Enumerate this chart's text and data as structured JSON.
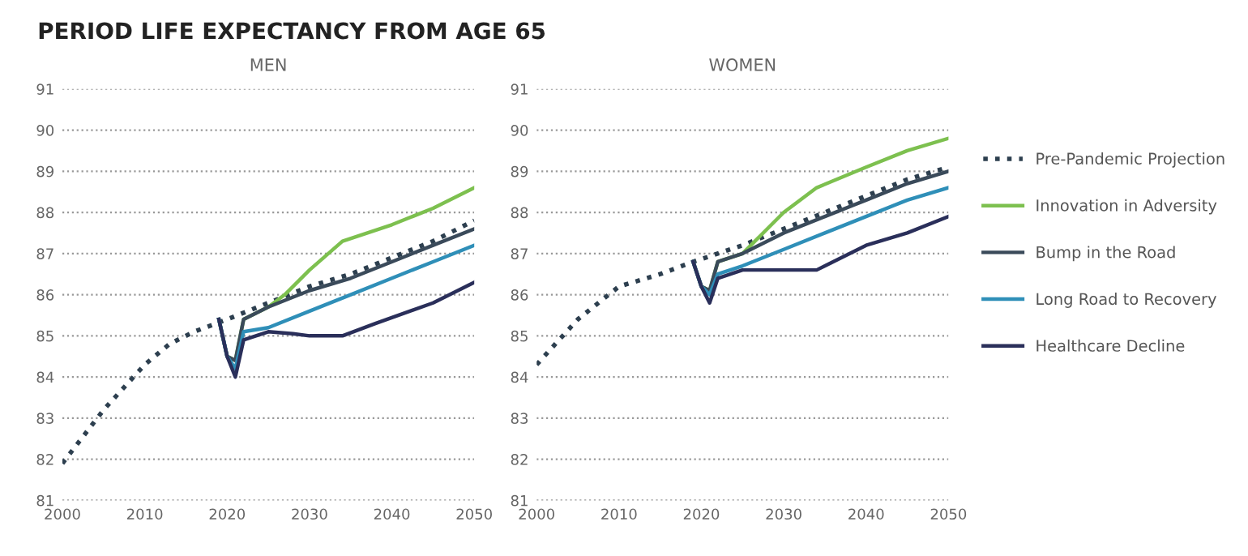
{
  "chart_data": [
    {
      "type": "line",
      "title": "MEN",
      "annotations": [
        "PERIOD LIFE EXPECTANCY FROM AGE 65"
      ],
      "xlim": [
        2000,
        2050
      ],
      "xticks": [
        2000,
        2010,
        2020,
        2030,
        2040,
        2050
      ],
      "ylim": [
        81,
        91
      ],
      "yticks": [
        81,
        82,
        83,
        84,
        85,
        86,
        87,
        88,
        89,
        90,
        91
      ],
      "grid": "y",
      "legend": false,
      "series": [
        {
          "color": "#2d3f4f",
          "line_style": "dotted",
          "x": [
            2000,
            2005,
            2010,
            2013,
            2016,
            2020,
            2025,
            2030,
            2035,
            2040,
            2045,
            2050
          ],
          "values": [
            81.9,
            83.2,
            84.3,
            84.8,
            85.1,
            85.4,
            85.8,
            86.2,
            86.5,
            86.9,
            87.3,
            87.8
          ]
        },
        {
          "color": "#7dc04f",
          "line_style": "solid",
          "x": [
            2019,
            2020,
            2021,
            2022,
            2025,
            2027,
            2030,
            2034,
            2040,
            2045,
            2050
          ],
          "values": [
            85.4,
            84.5,
            84.4,
            85.4,
            85.7,
            86.0,
            86.6,
            87.3,
            87.7,
            88.1,
            88.6
          ]
        },
        {
          "color": "#3a4a5a",
          "line_style": "solid",
          "x": [
            2019,
            2020,
            2021,
            2022,
            2025,
            2030,
            2035,
            2040,
            2045,
            2050
          ],
          "values": [
            85.4,
            84.5,
            84.4,
            85.4,
            85.7,
            86.1,
            86.4,
            86.8,
            87.2,
            87.6
          ]
        },
        {
          "color": "#2f8fb8",
          "line_style": "solid",
          "x": [
            2019,
            2020,
            2021,
            2022,
            2025,
            2030,
            2035,
            2040,
            2045,
            2050
          ],
          "values": [
            85.4,
            84.5,
            84.2,
            85.1,
            85.2,
            85.6,
            86.0,
            86.4,
            86.8,
            87.2
          ]
        },
        {
          "color": "#2a2f5a",
          "line_style": "solid",
          "x": [
            2019,
            2020,
            2021,
            2022,
            2025,
            2028,
            2030,
            2034,
            2038,
            2045,
            2050
          ],
          "values": [
            85.4,
            84.5,
            84.0,
            84.9,
            85.1,
            85.05,
            85.0,
            85.0,
            85.3,
            85.8,
            86.3
          ]
        }
      ]
    },
    {
      "type": "line",
      "title": "WOMEN",
      "xlim": [
        2000,
        2050
      ],
      "xticks": [
        2000,
        2010,
        2020,
        2030,
        2040,
        2050
      ],
      "ylim": [
        81,
        91
      ],
      "yticks": [
        81,
        82,
        83,
        84,
        85,
        86,
        87,
        88,
        89,
        90,
        91
      ],
      "grid": "y",
      "legend": "right",
      "series": [
        {
          "name": "Pre-Pandemic Projection",
          "color": "#2d3f4f",
          "line_style": "dotted",
          "x": [
            2000,
            2005,
            2010,
            2015,
            2019,
            2025,
            2030,
            2035,
            2040,
            2045,
            2050
          ],
          "values": [
            84.3,
            85.4,
            86.2,
            86.5,
            86.8,
            87.2,
            87.6,
            88.0,
            88.4,
            88.8,
            89.1
          ]
        },
        {
          "name": "Innovation in Adversity",
          "color": "#7dc04f",
          "line_style": "solid",
          "x": [
            2019,
            2020,
            2021,
            2022,
            2025,
            2030,
            2034,
            2040,
            2045,
            2050
          ],
          "values": [
            86.8,
            86.2,
            86.1,
            86.8,
            87.0,
            88.0,
            88.6,
            89.1,
            89.5,
            89.8
          ]
        },
        {
          "name": "Bump in the Road",
          "color": "#3a4a5a",
          "line_style": "solid",
          "x": [
            2019,
            2020,
            2021,
            2022,
            2025,
            2030,
            2035,
            2040,
            2045,
            2050
          ],
          "values": [
            86.8,
            86.2,
            86.1,
            86.8,
            87.0,
            87.5,
            87.9,
            88.3,
            88.7,
            89.0
          ]
        },
        {
          "name": "Long Road to Recovery",
          "color": "#2f8fb8",
          "line_style": "solid",
          "x": [
            2019,
            2020,
            2021,
            2022,
            2025,
            2030,
            2035,
            2040,
            2045,
            2050
          ],
          "values": [
            86.8,
            86.2,
            86.0,
            86.5,
            86.7,
            87.1,
            87.5,
            87.9,
            88.3,
            88.6
          ]
        },
        {
          "name": "Healthcare Decline",
          "color": "#2a2f5a",
          "line_style": "solid",
          "x": [
            2019,
            2020,
            2021,
            2022,
            2025,
            2030,
            2034,
            2040,
            2045,
            2050
          ],
          "values": [
            86.8,
            86.2,
            85.8,
            86.4,
            86.6,
            86.6,
            86.6,
            87.2,
            87.5,
            87.9
          ]
        }
      ]
    }
  ]
}
